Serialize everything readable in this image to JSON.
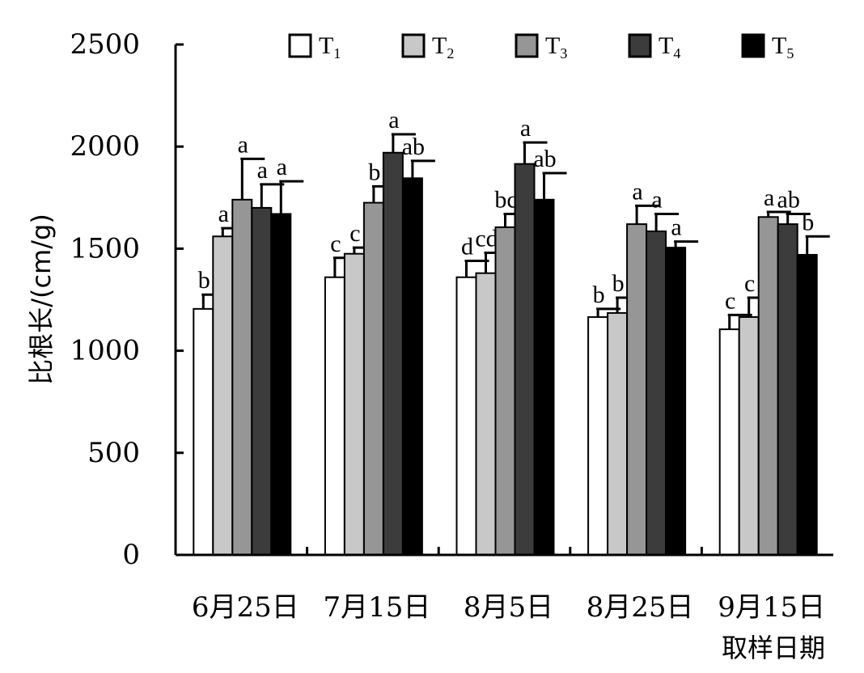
{
  "chart_data": {
    "type": "bar",
    "title": "",
    "ylabel": "比根长/(cm/g)",
    "xlabel": "取样日期",
    "ylim": [
      0,
      2500
    ],
    "yticks": [
      0,
      500,
      1000,
      1500,
      2000,
      2500
    ],
    "grid": false,
    "legend_position": "top",
    "categories": [
      "6月25日",
      "7月15日",
      "8月5日",
      "8月25日",
      "9月15日"
    ],
    "series": [
      {
        "name": "T",
        "subscript": "1",
        "color": "#ffffff",
        "values": [
          1205,
          1360,
          1360,
          1165,
          1105
        ],
        "errors": [
          70,
          95,
          80,
          40,
          70
        ],
        "labels": [
          "b",
          "c",
          "d",
          "b",
          "c"
        ]
      },
      {
        "name": "T",
        "subscript": "2",
        "color": "#c8c8c8",
        "values": [
          1560,
          1475,
          1380,
          1185,
          1165
        ],
        "errors": [
          40,
          30,
          100,
          75,
          95
        ],
        "labels": [
          "a",
          "c",
          "cd",
          "b",
          "c"
        ]
      },
      {
        "name": "T",
        "subscript": "3",
        "color": "#969696",
        "values": [
          1740,
          1725,
          1605,
          1620,
          1655
        ],
        "errors": [
          200,
          80,
          65,
          90,
          25
        ],
        "labels": [
          "a",
          "b",
          "bc",
          "a",
          "a"
        ]
      },
      {
        "name": "T",
        "subscript": "4",
        "color": "#3c3c3c",
        "values": [
          1700,
          1970,
          1915,
          1585,
          1620
        ],
        "errors": [
          115,
          90,
          105,
          85,
          50
        ],
        "labels": [
          "a",
          "a",
          "a",
          "a",
          "ab"
        ]
      },
      {
        "name": "T",
        "subscript": "5",
        "color": "#000000",
        "values": [
          1670,
          1845,
          1740,
          1505,
          1470
        ],
        "errors": [
          160,
          85,
          130,
          30,
          90
        ],
        "labels": [
          "a",
          "ab",
          "ab",
          "a",
          "b"
        ]
      }
    ]
  }
}
